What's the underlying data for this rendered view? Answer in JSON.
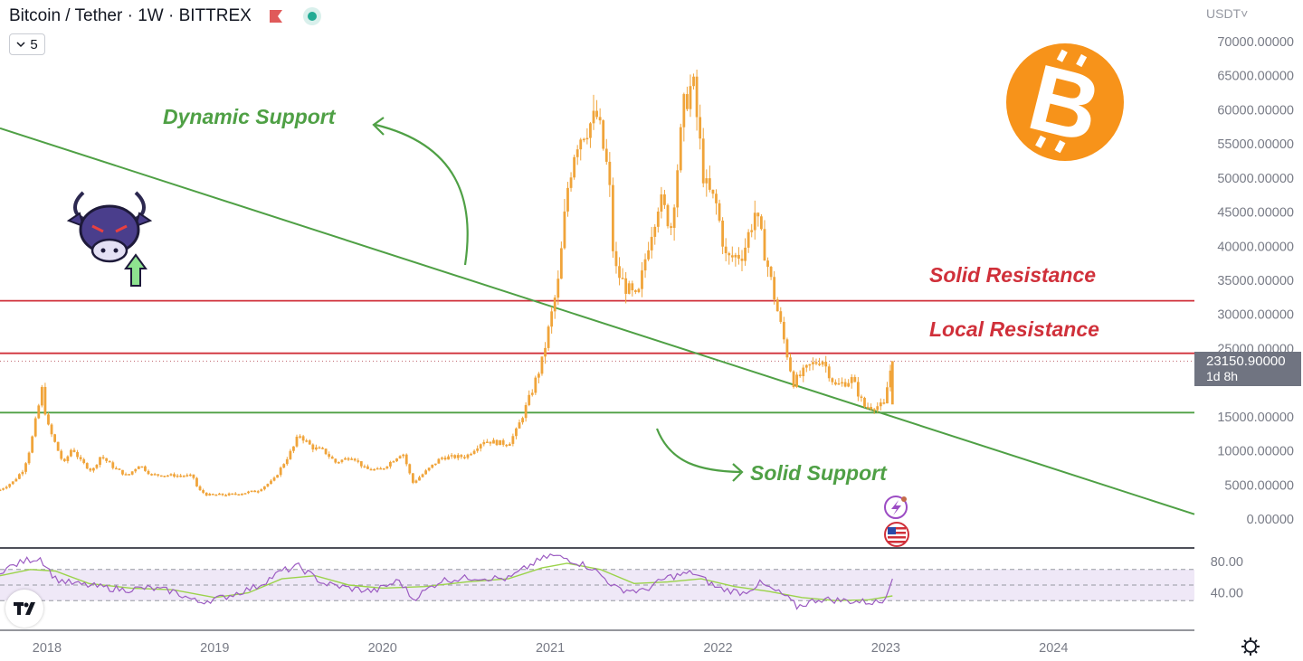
{
  "header": {
    "symbol_title": "Bitcoin / Tether · 1W · BITTREX",
    "indicator_count": "5",
    "currency": "USDT"
  },
  "price_tag": {
    "value": "23150.90000",
    "countdown": "1d 8h"
  },
  "annotations": {
    "dynamic_support": "Dynamic Support",
    "solid_resistance": "Solid Resistance",
    "local_resistance": "Local Resistance",
    "solid_support": "Solid Support"
  },
  "colors": {
    "candle": "#f0a43a",
    "resistance": "#d0303a",
    "support": "#4fa045",
    "rsi_line": "#9c5cc2",
    "rsi_ma": "#9bd34a",
    "rsi_band": "#efe8f7",
    "axis_text": "#787b86",
    "bitcoin_orange": "#f7931a"
  },
  "icons": [
    "bitcoin-logo-icon",
    "bull-icon",
    "up-arrow-icon",
    "lightning-icon",
    "us-flag-icon",
    "gear-icon",
    "tradingview-logo-icon",
    "flag-icon",
    "chevron-down-icon"
  ],
  "chart_data": [
    {
      "type": "line",
      "title": "Bitcoin / Tether · 1W · BITTREX",
      "y_axis_ticks": [
        "70000.00000",
        "65000.00000",
        "60000.00000",
        "55000.00000",
        "50000.00000",
        "45000.00000",
        "40000.00000",
        "35000.00000",
        "30000.00000",
        "25000.00000",
        "15000.00000",
        "10000.00000",
        "5000.00000",
        "0.00000"
      ],
      "ylim": [
        -2000,
        72000
      ],
      "x_axis_ticks": [
        "2018",
        "2019",
        "2020",
        "2021",
        "2022",
        "2023",
        "2024"
      ],
      "xlim": [
        2017.72,
        2024.84
      ],
      "last_price": 23150.9,
      "horizontal_lines": [
        {
          "name": "Solid Resistance",
          "value": 32000,
          "color": "#d0303a"
        },
        {
          "name": "Local Resistance",
          "value": 24300,
          "color": "#d0303a"
        },
        {
          "name": "Solid Support",
          "value": 15600,
          "color": "#4fa045"
        }
      ],
      "trend_lines": [
        {
          "name": "Dynamic Support",
          "from": {
            "x": 2017.72,
            "y": 57300
          },
          "to": {
            "x": 2024.84,
            "y": 700
          },
          "color": "#4fa045"
        }
      ],
      "series": [
        {
          "values": [
            {
              "x": 2017.72,
              "y": 4300
            },
            {
              "x": 2017.8,
              "y": 5500
            },
            {
              "x": 2017.86,
              "y": 7300
            },
            {
              "x": 2017.9,
              "y": 10500
            },
            {
              "x": 2017.95,
              "y": 16500
            },
            {
              "x": 2017.97,
              "y": 19000
            },
            {
              "x": 2018.0,
              "y": 14000
            },
            {
              "x": 2018.05,
              "y": 11000
            },
            {
              "x": 2018.1,
              "y": 8000
            },
            {
              "x": 2018.15,
              "y": 10500
            },
            {
              "x": 2018.2,
              "y": 8500
            },
            {
              "x": 2018.27,
              "y": 7000
            },
            {
              "x": 2018.32,
              "y": 9300
            },
            {
              "x": 2018.4,
              "y": 7500
            },
            {
              "x": 2018.48,
              "y": 6300
            },
            {
              "x": 2018.55,
              "y": 8000
            },
            {
              "x": 2018.62,
              "y": 6500
            },
            {
              "x": 2018.75,
              "y": 6400
            },
            {
              "x": 2018.87,
              "y": 6300
            },
            {
              "x": 2018.9,
              "y": 4300
            },
            {
              "x": 2018.96,
              "y": 3500
            },
            {
              "x": 2019.1,
              "y": 3600
            },
            {
              "x": 2019.25,
              "y": 4100
            },
            {
              "x": 2019.35,
              "y": 5700
            },
            {
              "x": 2019.42,
              "y": 8500
            },
            {
              "x": 2019.48,
              "y": 11000
            },
            {
              "x": 2019.5,
              "y": 12500
            },
            {
              "x": 2019.58,
              "y": 10500
            },
            {
              "x": 2019.65,
              "y": 10000
            },
            {
              "x": 2019.72,
              "y": 8300
            },
            {
              "x": 2019.82,
              "y": 9200
            },
            {
              "x": 2019.9,
              "y": 7300
            },
            {
              "x": 2019.99,
              "y": 7200
            },
            {
              "x": 2020.12,
              "y": 9800
            },
            {
              "x": 2020.18,
              "y": 5300
            },
            {
              "x": 2020.25,
              "y": 6800
            },
            {
              "x": 2020.35,
              "y": 9000
            },
            {
              "x": 2020.5,
              "y": 9200
            },
            {
              "x": 2020.6,
              "y": 11500
            },
            {
              "x": 2020.75,
              "y": 11000
            },
            {
              "x": 2020.8,
              "y": 13000
            },
            {
              "x": 2020.88,
              "y": 18000
            },
            {
              "x": 2020.95,
              "y": 23000
            },
            {
              "x": 2021.0,
              "y": 29000
            },
            {
              "x": 2021.05,
              "y": 35000
            },
            {
              "x": 2021.1,
              "y": 48000
            },
            {
              "x": 2021.15,
              "y": 55000
            },
            {
              "x": 2021.2,
              "y": 57000
            },
            {
              "x": 2021.28,
              "y": 59000
            },
            {
              "x": 2021.35,
              "y": 50000
            },
            {
              "x": 2021.38,
              "y": 37000
            },
            {
              "x": 2021.45,
              "y": 34000
            },
            {
              "x": 2021.52,
              "y": 32000
            },
            {
              "x": 2021.58,
              "y": 40000
            },
            {
              "x": 2021.65,
              "y": 47000
            },
            {
              "x": 2021.72,
              "y": 43000
            },
            {
              "x": 2021.8,
              "y": 61000
            },
            {
              "x": 2021.85,
              "y": 64000
            },
            {
              "x": 2021.92,
              "y": 49000
            },
            {
              "x": 2021.99,
              "y": 46000
            },
            {
              "x": 2022.05,
              "y": 38000
            },
            {
              "x": 2022.15,
              "y": 39000
            },
            {
              "x": 2022.22,
              "y": 45000
            },
            {
              "x": 2022.28,
              "y": 39000
            },
            {
              "x": 2022.35,
              "y": 31000
            },
            {
              "x": 2022.45,
              "y": 20000
            },
            {
              "x": 2022.55,
              "y": 22500
            },
            {
              "x": 2022.62,
              "y": 23500
            },
            {
              "x": 2022.7,
              "y": 19500
            },
            {
              "x": 2022.8,
              "y": 20500
            },
            {
              "x": 2022.87,
              "y": 16500
            },
            {
              "x": 2022.99,
              "y": 16600
            },
            {
              "x": 2023.02,
              "y": 21000
            },
            {
              "x": 2023.04,
              "y": 23150
            }
          ]
        }
      ]
    },
    {
      "type": "line",
      "y_axis_ticks": [
        "80.00",
        "40.00"
      ],
      "ylim": [
        0,
        100
      ],
      "xlim": [
        2017.72,
        2024.84
      ],
      "reference_levels": [
        70,
        50,
        30
      ],
      "series": [
        {
          "values": [
            {
              "x": 2017.72,
              "y": 68
            },
            {
              "x": 2017.8,
              "y": 75
            },
            {
              "x": 2017.88,
              "y": 82
            },
            {
              "x": 2017.96,
              "y": 85
            },
            {
              "x": 2018.05,
              "y": 58
            },
            {
              "x": 2018.15,
              "y": 52
            },
            {
              "x": 2018.3,
              "y": 48
            },
            {
              "x": 2018.45,
              "y": 44
            },
            {
              "x": 2018.6,
              "y": 46
            },
            {
              "x": 2018.75,
              "y": 42
            },
            {
              "x": 2018.9,
              "y": 28
            },
            {
              "x": 2019.05,
              "y": 34
            },
            {
              "x": 2019.25,
              "y": 48
            },
            {
              "x": 2019.4,
              "y": 68
            },
            {
              "x": 2019.5,
              "y": 74
            },
            {
              "x": 2019.65,
              "y": 52
            },
            {
              "x": 2019.8,
              "y": 46
            },
            {
              "x": 2019.95,
              "y": 42
            },
            {
              "x": 2020.1,
              "y": 56
            },
            {
              "x": 2020.18,
              "y": 32
            },
            {
              "x": 2020.35,
              "y": 56
            },
            {
              "x": 2020.55,
              "y": 60
            },
            {
              "x": 2020.75,
              "y": 58
            },
            {
              "x": 2020.9,
              "y": 78
            },
            {
              "x": 2021.0,
              "y": 88
            },
            {
              "x": 2021.1,
              "y": 84
            },
            {
              "x": 2021.25,
              "y": 72
            },
            {
              "x": 2021.4,
              "y": 45
            },
            {
              "x": 2021.55,
              "y": 42
            },
            {
              "x": 2021.7,
              "y": 60
            },
            {
              "x": 2021.85,
              "y": 66
            },
            {
              "x": 2022.0,
              "y": 46
            },
            {
              "x": 2022.15,
              "y": 40
            },
            {
              "x": 2022.25,
              "y": 52
            },
            {
              "x": 2022.4,
              "y": 36
            },
            {
              "x": 2022.47,
              "y": 22
            },
            {
              "x": 2022.6,
              "y": 32
            },
            {
              "x": 2022.75,
              "y": 30
            },
            {
              "x": 2022.9,
              "y": 28
            },
            {
              "x": 2022.98,
              "y": 28
            },
            {
              "x": 2023.04,
              "y": 58
            }
          ]
        },
        {
          "values": [
            {
              "x": 2017.72,
              "y": 62
            },
            {
              "x": 2017.9,
              "y": 70
            },
            {
              "x": 2018.05,
              "y": 68
            },
            {
              "x": 2018.25,
              "y": 52
            },
            {
              "x": 2018.5,
              "y": 46
            },
            {
              "x": 2018.75,
              "y": 44
            },
            {
              "x": 2019.0,
              "y": 34
            },
            {
              "x": 2019.2,
              "y": 40
            },
            {
              "x": 2019.4,
              "y": 58
            },
            {
              "x": 2019.6,
              "y": 62
            },
            {
              "x": 2019.8,
              "y": 50
            },
            {
              "x": 2020.0,
              "y": 46
            },
            {
              "x": 2020.25,
              "y": 48
            },
            {
              "x": 2020.5,
              "y": 54
            },
            {
              "x": 2020.75,
              "y": 58
            },
            {
              "x": 2020.95,
              "y": 72
            },
            {
              "x": 2021.1,
              "y": 78
            },
            {
              "x": 2021.3,
              "y": 70
            },
            {
              "x": 2021.5,
              "y": 52
            },
            {
              "x": 2021.7,
              "y": 54
            },
            {
              "x": 2021.9,
              "y": 58
            },
            {
              "x": 2022.1,
              "y": 48
            },
            {
              "x": 2022.3,
              "y": 42
            },
            {
              "x": 2022.5,
              "y": 34
            },
            {
              "x": 2022.7,
              "y": 30
            },
            {
              "x": 2022.9,
              "y": 31
            },
            {
              "x": 2023.04,
              "y": 36
            }
          ]
        }
      ]
    }
  ]
}
